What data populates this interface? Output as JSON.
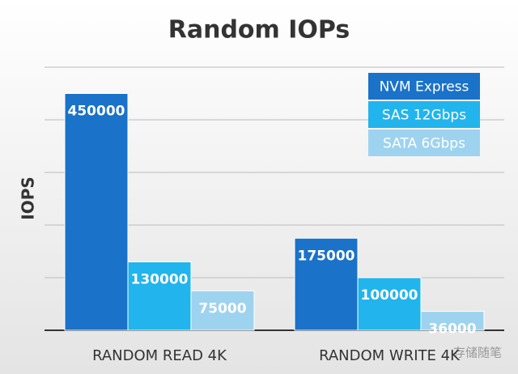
{
  "chart_data": {
    "type": "bar",
    "title": "Random IOPs",
    "y_label": "IOPS",
    "categories": [
      "RANDOM READ 4K",
      "RANDOM WRITE 4K"
    ],
    "series": [
      {
        "name": "NVM Express",
        "color": "#1a72c9",
        "values": [
          450000,
          175000
        ]
      },
      {
        "name": "SAS 12Gbps",
        "color": "#22b4ec",
        "values": [
          130000,
          100000
        ]
      },
      {
        "name": "SATA 6Gbps",
        "color": "#9dd3ef",
        "values": [
          75000,
          36000
        ]
      }
    ],
    "ylim": [
      0,
      500000
    ],
    "yticks": [
      0,
      100000,
      200000,
      300000,
      400000,
      500000
    ],
    "grid": true,
    "legend": "top-right",
    "watermark": "存储随笔"
  }
}
